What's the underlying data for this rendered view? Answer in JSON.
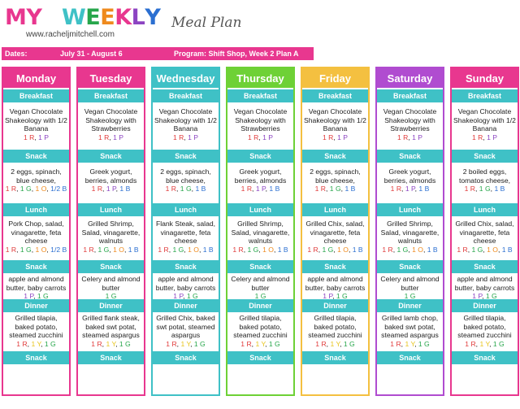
{
  "header": {
    "title_my": "MY",
    "title_weekly": "WEEKLY",
    "title_meal": "Meal Plan",
    "website": "www.racheljmitchell.com",
    "weekly_colors": [
      "#3fc1c6",
      "#27a64b",
      "#ef8a1d",
      "#e8378f",
      "#8c44c2",
      "#2b6fd1"
    ],
    "dates_label": "Dates:",
    "dates_value": "July 31 - August 6",
    "program_label": "Program: Shift Shop, Week 2 Plan A"
  },
  "sections": {
    "breakfast": "Breakfast",
    "snack": "Snack",
    "lunch": "Lunch",
    "dinner": "Dinner"
  },
  "days": [
    {
      "name": "Monday",
      "color": "#e8378f",
      "breakfast": "Vegan Chocolate Shakeology with 1/2 Banana",
      "breakfast_portions": [
        [
          "1 R",
          "r"
        ],
        [
          "1 P",
          "p"
        ]
      ],
      "snack1": "2 eggs, spinach, blue cheese,",
      "snack1_portions": [
        [
          "1 R",
          "r"
        ],
        [
          "1 G",
          "g"
        ],
        [
          "1 O",
          "o"
        ],
        [
          "1/2 B",
          "b"
        ]
      ],
      "lunch": "Pork Chop, salad, vinagarette, feta cheese",
      "lunch_portions": [
        [
          "1 R",
          "r"
        ],
        [
          "1 G",
          "g"
        ],
        [
          "1 O",
          "o"
        ],
        [
          "1/2 B",
          "b"
        ]
      ],
      "snack2": "apple and almond butter, baby carrots",
      "snack2_portions": [
        [
          "1 P",
          "p"
        ],
        [
          "1 G",
          "g"
        ]
      ],
      "dinner": "Grilled tilapia, baked potato, steamed zucchini",
      "dinner_portions": [
        [
          "1 R",
          "r"
        ],
        [
          "1 Y",
          "y"
        ],
        [
          "1 G",
          "g"
        ]
      ]
    },
    {
      "name": "Tuesday",
      "color": "#e8378f",
      "breakfast": "Vegan Chocolate Shakeology with Strawberries",
      "breakfast_portions": [
        [
          "1 R",
          "r"
        ],
        [
          "1 P",
          "p"
        ]
      ],
      "snack1": "Greek yogurt, berries, almonds",
      "snack1_portions": [
        [
          "1 R",
          "r"
        ],
        [
          "1 P",
          "p"
        ],
        [
          "1 B",
          "b"
        ]
      ],
      "lunch": "Grilled Shrimp, Salad, vinagarette, walnuts",
      "lunch_portions": [
        [
          "1 R",
          "r"
        ],
        [
          "1 G",
          "g"
        ],
        [
          "1 O",
          "o"
        ],
        [
          "1 B",
          "b"
        ]
      ],
      "snack2": "Celery and almond butter",
      "snack2_portions": [
        [
          "1 G",
          "g"
        ]
      ],
      "dinner": "Grilled flank steak, baked swt potat, steamed aspargus",
      "dinner_portions": [
        [
          "1 R",
          "r"
        ],
        [
          "1 Y",
          "y"
        ],
        [
          "1 G",
          "g"
        ]
      ]
    },
    {
      "name": "Wednesday",
      "color": "#3fc1c6",
      "breakfast": "Vegan Chocolate Shakeology with 1/2 Banana",
      "breakfast_portions": [
        [
          "1 R",
          "r"
        ],
        [
          "1 P",
          "p"
        ]
      ],
      "snack1": "2 eggs, spinach, blue cheese,",
      "snack1_portions": [
        [
          "1 R",
          "r"
        ],
        [
          "1 G",
          "g"
        ],
        [
          "1 B",
          "b"
        ]
      ],
      "lunch": "Flank Steak, salad, vinagarette, feta cheese",
      "lunch_portions": [
        [
          "1 R",
          "r"
        ],
        [
          "1 G",
          "g"
        ],
        [
          "1 O",
          "o"
        ],
        [
          "1 B",
          "b"
        ]
      ],
      "snack2": "apple and almond butter, baby carrots",
      "snack2_portions": [
        [
          "1 P",
          "p"
        ],
        [
          "1 G",
          "g"
        ]
      ],
      "dinner": "Grilled Chix, baked swt potat, steamed aspargus",
      "dinner_portions": [
        [
          "1 R",
          "r"
        ],
        [
          "1 Y",
          "y"
        ],
        [
          "1 G",
          "g"
        ]
      ]
    },
    {
      "name": "Thursday",
      "color": "#6ed136",
      "breakfast": "Vegan Chocolate Shakeology with Strawberries",
      "breakfast_portions": [
        [
          "1 R",
          "r"
        ],
        [
          "1 P",
          "p"
        ]
      ],
      "snack1": "Greek yogurt, berries, almonds",
      "snack1_portions": [
        [
          "1 R",
          "r"
        ],
        [
          "1 P",
          "p"
        ],
        [
          "1 B",
          "b"
        ]
      ],
      "lunch": "Grilled Shrimp, Salad, vinagarette, walnuts",
      "lunch_portions": [
        [
          "1 R",
          "r"
        ],
        [
          "1 G",
          "g"
        ],
        [
          "1 O",
          "o"
        ],
        [
          "1 B",
          "b"
        ]
      ],
      "snack2": "Celery and almond butter",
      "snack2_portions": [
        [
          "1 G",
          "g"
        ]
      ],
      "dinner": "Grilled tilapia, baked potato, steamed zucchini",
      "dinner_portions": [
        [
          "1 R",
          "r"
        ],
        [
          "1 Y",
          "y"
        ],
        [
          "1 G",
          "g"
        ]
      ]
    },
    {
      "name": "Friday",
      "color": "#f4c040",
      "breakfast": "Vegan Chocolate Shakeology with 1/2 Banana",
      "breakfast_portions": [
        [
          "1 R",
          "r"
        ],
        [
          "1 P",
          "p"
        ]
      ],
      "snack1": "2 eggs, spinach, blue cheese,",
      "snack1_portions": [
        [
          "1 R",
          "r"
        ],
        [
          "1 G",
          "g"
        ],
        [
          "1 B",
          "b"
        ]
      ],
      "lunch": "Grilled Chix, salad, vinagarette, feta cheese",
      "lunch_portions": [
        [
          "1 R",
          "r"
        ],
        [
          "1 G",
          "g"
        ],
        [
          "1 O",
          "o"
        ],
        [
          "1 B",
          "b"
        ]
      ],
      "snack2": "apple and almond butter, baby carrots",
      "snack2_portions": [
        [
          "1 P",
          "p"
        ],
        [
          "1 G",
          "g"
        ]
      ],
      "dinner": "Grilled tilapia, baked potato, steamed zucchini",
      "dinner_portions": [
        [
          "1 R",
          "r"
        ],
        [
          "1 Y",
          "y"
        ],
        [
          "1 G",
          "g"
        ]
      ]
    },
    {
      "name": "Saturday",
      "color": "#b04cd0",
      "breakfast": "Vegan Chocolate Shakeology with Strawberries",
      "breakfast_portions": [
        [
          "1 R",
          "r"
        ],
        [
          "1 P",
          "p"
        ]
      ],
      "snack1": "Greek yogurt, berries, almonds",
      "snack1_portions": [
        [
          "1 R",
          "r"
        ],
        [
          "1 P",
          "p"
        ],
        [
          "1 B",
          "b"
        ]
      ],
      "lunch": "Grilled Shrimp, Salad, vinagarette, walnuts",
      "lunch_portions": [
        [
          "1 R",
          "r"
        ],
        [
          "1 G",
          "g"
        ],
        [
          "1 O",
          "o"
        ],
        [
          "1 B",
          "b"
        ]
      ],
      "snack2": "Celery and almond butter",
      "snack2_portions": [
        [
          "1 G",
          "g"
        ]
      ],
      "dinner": "Grilled lamb chop, baked swt potat, steamed aspargus",
      "dinner_portions": [
        [
          "1 R",
          "r"
        ],
        [
          "1 Y",
          "y"
        ],
        [
          "1 G",
          "g"
        ]
      ]
    },
    {
      "name": "Sunday",
      "color": "#e8378f",
      "breakfast": "Vegan Chocolate Shakeology with 1/2 Banana",
      "breakfast_portions": [
        [
          "1 R",
          "r"
        ],
        [
          "1 P",
          "p"
        ]
      ],
      "snack1": "2 boiled eggs, tomatos cheese,",
      "snack1_portions": [
        [
          "1 R",
          "r"
        ],
        [
          "1 G",
          "g"
        ],
        [
          "1 B",
          "b"
        ]
      ],
      "lunch": "Grilled Chix, salad, vinagarette, feta cheese",
      "lunch_portions": [
        [
          "1 R",
          "r"
        ],
        [
          "1 G",
          "g"
        ],
        [
          "1 O",
          "o"
        ],
        [
          "1 B",
          "b"
        ]
      ],
      "snack2": "apple and almond butter, baby carrots",
      "snack2_portions": [
        [
          "1 P",
          "p"
        ],
        [
          "1 G",
          "g"
        ]
      ],
      "dinner": "Grilled tilapia, baked potato, steamed zucchini",
      "dinner_portions": [
        [
          "1 R",
          "r"
        ],
        [
          "1 Y",
          "y"
        ],
        [
          "1 G",
          "g"
        ]
      ]
    }
  ]
}
